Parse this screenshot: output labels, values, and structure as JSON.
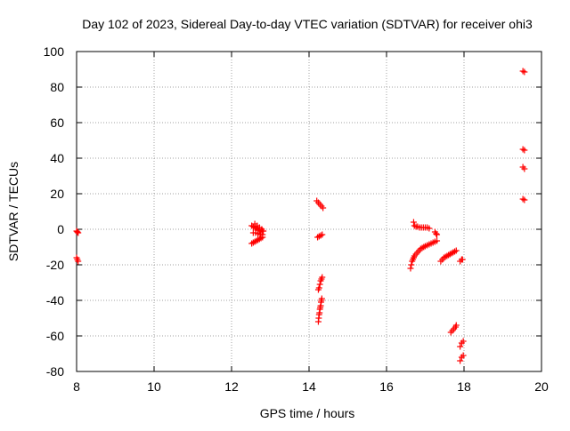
{
  "chart_data": {
    "type": "scatter",
    "title": "Day 102 of 2023, Sidereal Day-to-day VTEC variation (SDTVAR) for receiver ohi3",
    "xlabel": "GPS time / hours",
    "ylabel": "SDTVAR / TECUs",
    "xlim": [
      8,
      20
    ],
    "ylim": [
      -80,
      100
    ],
    "xticks": [
      8,
      10,
      12,
      14,
      16,
      18,
      20
    ],
    "yticks": [
      -80,
      -60,
      -40,
      -20,
      0,
      20,
      40,
      60,
      80,
      100
    ],
    "grid": true,
    "marker": "plus",
    "marker_color": "#ff0000",
    "series": [
      {
        "values": [
          [
            8.0,
            -1
          ],
          [
            8.02,
            -1.5
          ],
          [
            8.04,
            -2
          ],
          [
            8.0,
            -16
          ],
          [
            8.02,
            -17
          ],
          [
            8.04,
            -18
          ],
          [
            12.52,
            -8
          ],
          [
            12.56,
            -7.5
          ],
          [
            12.6,
            -7
          ],
          [
            12.64,
            -6.5
          ],
          [
            12.68,
            -6
          ],
          [
            12.72,
            -5.5
          ],
          [
            12.76,
            -5
          ],
          [
            12.8,
            -4.5
          ],
          [
            12.52,
            2
          ],
          [
            12.56,
            1.5
          ],
          [
            12.6,
            1
          ],
          [
            12.64,
            0.5
          ],
          [
            12.68,
            0
          ],
          [
            12.72,
            -0.5
          ],
          [
            12.76,
            -1
          ],
          [
            12.8,
            -1
          ],
          [
            12.56,
            -2
          ],
          [
            12.62,
            -2
          ],
          [
            12.68,
            -2.5
          ],
          [
            12.74,
            -3
          ],
          [
            12.8,
            -3
          ],
          [
            12.6,
            3
          ],
          [
            12.66,
            2
          ],
          [
            12.72,
            1
          ],
          [
            12.78,
            0
          ],
          [
            12.82,
            -1
          ],
          [
            14.2,
            16
          ],
          [
            14.24,
            15
          ],
          [
            14.28,
            14
          ],
          [
            14.32,
            13
          ],
          [
            14.36,
            12
          ],
          [
            14.22,
            -4.5
          ],
          [
            14.26,
            -4
          ],
          [
            14.3,
            -3.5
          ],
          [
            14.34,
            -3
          ],
          [
            14.24,
            -34
          ],
          [
            14.26,
            -33
          ],
          [
            14.28,
            -31
          ],
          [
            14.3,
            -29
          ],
          [
            14.32,
            -28
          ],
          [
            14.34,
            -27
          ],
          [
            14.24,
            -52
          ],
          [
            14.25,
            -50
          ],
          [
            14.26,
            -48
          ],
          [
            14.27,
            -47
          ],
          [
            14.28,
            -45
          ],
          [
            14.29,
            -44
          ],
          [
            14.3,
            -43
          ],
          [
            14.31,
            -41
          ],
          [
            14.32,
            -40
          ],
          [
            14.33,
            -39
          ],
          [
            16.62,
            -22
          ],
          [
            16.64,
            -20
          ],
          [
            16.66,
            -18
          ],
          [
            16.68,
            -17
          ],
          [
            16.7,
            -16
          ],
          [
            16.72,
            -15
          ],
          [
            16.76,
            -14
          ],
          [
            16.8,
            -13
          ],
          [
            16.84,
            -12
          ],
          [
            16.88,
            -11
          ],
          [
            16.92,
            -10.5
          ],
          [
            16.96,
            -10
          ],
          [
            17.0,
            -9.5
          ],
          [
            17.05,
            -9
          ],
          [
            17.1,
            -8.5
          ],
          [
            17.15,
            -8
          ],
          [
            17.2,
            -7.5
          ],
          [
            17.25,
            -7
          ],
          [
            17.3,
            -6.5
          ],
          [
            16.7,
            4
          ],
          [
            16.72,
            2
          ],
          [
            16.76,
            1.5
          ],
          [
            16.8,
            1.5
          ],
          [
            16.85,
            1
          ],
          [
            16.9,
            1
          ],
          [
            16.95,
            1
          ],
          [
            17.0,
            1
          ],
          [
            17.05,
            1
          ],
          [
            17.1,
            0.5
          ],
          [
            17.25,
            -1.5
          ],
          [
            17.28,
            -2.5
          ],
          [
            17.3,
            -3
          ],
          [
            17.4,
            -18
          ],
          [
            17.44,
            -17
          ],
          [
            17.48,
            -16
          ],
          [
            17.52,
            -15.5
          ],
          [
            17.56,
            -15
          ],
          [
            17.6,
            -14.5
          ],
          [
            17.64,
            -14
          ],
          [
            17.68,
            -13.5
          ],
          [
            17.72,
            -13
          ],
          [
            17.76,
            -12.5
          ],
          [
            17.8,
            -12
          ],
          [
            17.9,
            -18
          ],
          [
            17.94,
            -17
          ],
          [
            17.96,
            -17
          ],
          [
            17.66,
            -58
          ],
          [
            17.7,
            -57
          ],
          [
            17.74,
            -56
          ],
          [
            17.78,
            -55
          ],
          [
            17.8,
            -54
          ],
          [
            17.9,
            -66
          ],
          [
            17.94,
            -64
          ],
          [
            17.98,
            -63
          ],
          [
            17.9,
            -74
          ],
          [
            17.94,
            -72
          ],
          [
            17.98,
            -71
          ],
          [
            19.52,
            89
          ],
          [
            19.56,
            88.5
          ],
          [
            19.52,
            45
          ],
          [
            19.56,
            44.5
          ],
          [
            19.52,
            35
          ],
          [
            19.56,
            34
          ],
          [
            19.52,
            17
          ],
          [
            19.56,
            16.5
          ]
        ]
      }
    ]
  }
}
